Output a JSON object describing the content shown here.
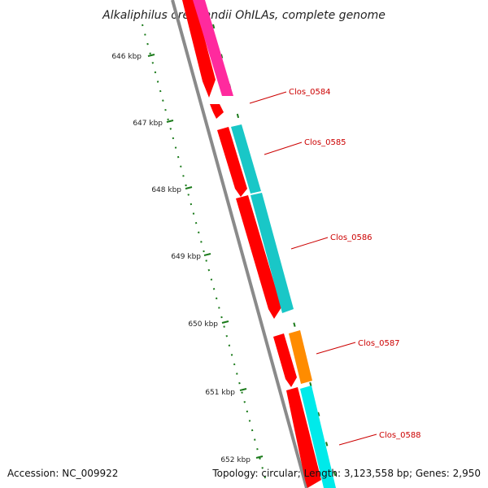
{
  "title": "Alkaliphilus oremlandii OhILAs, complete genome",
  "footer": {
    "accession": "Accession: NC_009922",
    "summary": "Topology: circular; Length: 3,123,558 bp; Genes: 2,950"
  },
  "ticks": [
    "646 kbp",
    "647 kbp",
    "648 kbp",
    "649 kbp",
    "650 kbp",
    "651 kbp",
    "652 kbp"
  ],
  "gene_labels": [
    "Clos_0584",
    "Clos_0585",
    "Clos_0586",
    "Clos_0587",
    "Clos_0588"
  ],
  "colors": {
    "backbone": "#8a8a8a",
    "strand_cds": "#ff0000",
    "magenta": "#ff2a9e",
    "teal": "#19c7c7",
    "orange": "#ff8c00",
    "cyan": "#00eaea",
    "tick_green": "#1a7a1a",
    "label_red": "#cc0000"
  }
}
